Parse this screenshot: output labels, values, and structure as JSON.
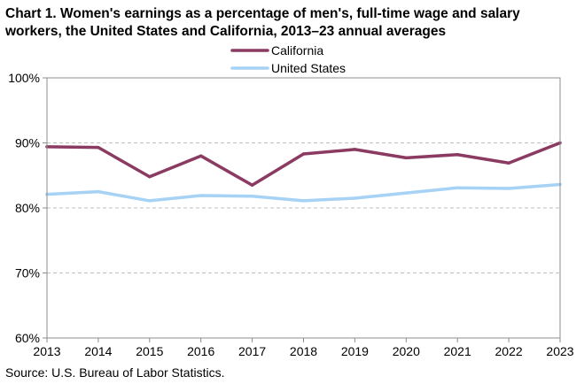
{
  "chart_data": {
    "type": "line",
    "title": "Chart 1. Women's earnings as a percentage of men's, full-time wage and salary workers, the United States and California,  2013–23  annual averages",
    "source": "Source:  U.S. Bureau of Labor Statistics.",
    "xlabel": "",
    "ylabel": "",
    "x": [
      2013,
      2014,
      2015,
      2016,
      2017,
      2018,
      2019,
      2020,
      2021,
      2022,
      2023
    ],
    "ylim": [
      60,
      100
    ],
    "yticks": [
      60,
      70,
      80,
      90,
      100
    ],
    "ytick_labels": [
      "60%",
      "70%",
      "80%",
      "90%",
      "100%"
    ],
    "grid": "horizontal dashed",
    "legend_position": "top-center",
    "series": [
      {
        "name": "California",
        "color": "#8b3a62",
        "values": [
          89.4,
          89.3,
          84.8,
          88.0,
          83.5,
          88.3,
          89.0,
          87.7,
          88.2,
          86.9,
          90.0
        ]
      },
      {
        "name": "United States",
        "color": "#a6d2f5",
        "values": [
          82.1,
          82.5,
          81.1,
          81.9,
          81.8,
          81.1,
          81.5,
          82.3,
          83.1,
          83.0,
          83.6
        ]
      }
    ]
  }
}
